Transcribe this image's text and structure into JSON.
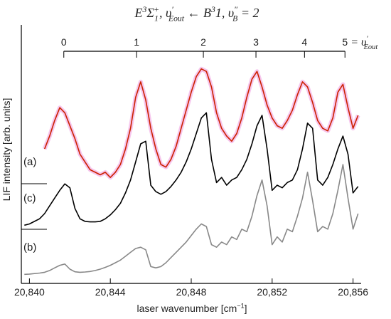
{
  "chart_data": {
    "type": "line",
    "title": [
      "E",
      "3",
      "Σ",
      "1",
      "+",
      ", υ",
      "′",
      "Eout",
      " ← B",
      "3",
      "1, υ",
      "″",
      "B",
      " = 2"
    ],
    "xlabel": [
      "laser wavenumber [cm",
      "−1",
      "]"
    ],
    "ylabel": "LIF intensity [arb. units]",
    "xlim": [
      20839.6,
      20856.4
    ],
    "ylim": [
      0,
      100
    ],
    "xticks": [
      {
        "value": 20840,
        "label": "20,840"
      },
      {
        "value": 20844,
        "label": "20,844"
      },
      {
        "value": 20848,
        "label": "20,848"
      },
      {
        "value": 20852,
        "label": "20,852"
      },
      {
        "value": 20856,
        "label": "20,856"
      }
    ],
    "top_axis": {
      "ticks": [
        {
          "value": 20841.7,
          "label": "0"
        },
        {
          "value": 20845.3,
          "label": "1"
        },
        {
          "value": 20848.6,
          "label": "2"
        },
        {
          "value": 20851.2,
          "label": "3"
        },
        {
          "value": 20853.6,
          "label": "4"
        },
        {
          "value": 20855.6,
          "label": "5"
        }
      ],
      "suffix": [
        "= υ",
        "′",
        "Eout"
      ]
    },
    "x": [
      20839.75,
      20840,
      20840.25,
      20840.5,
      20840.75,
      20841,
      20841.25,
      20841.5,
      20841.75,
      20842,
      20842.25,
      20842.5,
      20842.75,
      20843,
      20843.25,
      20843.5,
      20843.75,
      20844,
      20844.25,
      20844.5,
      20844.75,
      20845,
      20845.25,
      20845.5,
      20845.75,
      20846,
      20846.25,
      20846.5,
      20846.75,
      20847,
      20847.25,
      20847.5,
      20847.75,
      20848,
      20848.25,
      20848.5,
      20848.75,
      20849,
      20849.25,
      20849.5,
      20849.75,
      20850,
      20850.25,
      20850.5,
      20850.75,
      20851,
      20851.25,
      20851.5,
      20851.75,
      20852,
      20852.25,
      20852.5,
      20852.75,
      20853,
      20853.25,
      20853.5,
      20853.75,
      20854,
      20854.25,
      20854.5,
      20854.75,
      20855,
      20855.25,
      20855.5,
      20855.75,
      20856,
      20856.25
    ],
    "series": [
      {
        "name": "(a)",
        "color": "#cc2200",
        "glow": "#f4b8e8",
        "values": [
          null,
          null,
          null,
          null,
          52,
          57,
          63,
          68,
          66,
          61,
          56,
          50,
          47,
          44,
          43,
          42,
          43,
          41,
          43,
          46,
          52,
          60,
          72,
          78,
          71,
          60,
          52,
          46,
          45,
          48,
          53,
          60,
          67,
          74,
          80,
          83,
          82,
          76,
          66,
          60,
          57,
          55,
          58,
          64,
          72,
          79,
          82,
          76,
          69,
          64,
          61,
          60,
          63,
          67,
          73,
          78,
          76,
          70,
          63,
          60,
          59,
          64,
          74,
          77,
          68,
          60,
          65
        ]
      },
      {
        "name": "(c)",
        "color": "#000000",
        "values": [
          22.5,
          23,
          24,
          25,
          27,
          30,
          33,
          36,
          38.5,
          37,
          29,
          25,
          24,
          23.8,
          23.8,
          24,
          25,
          26.5,
          28.5,
          31,
          35,
          40,
          47,
          54,
          55,
          38,
          35.5,
          34.5,
          35.5,
          37.5,
          40,
          43,
          47,
          52,
          58,
          64,
          66,
          48,
          39,
          41,
          38,
          40,
          41,
          44,
          48,
          54,
          61,
          65,
          52,
          36,
          38,
          37,
          39,
          40,
          44,
          52,
          62,
          60,
          40,
          38,
          41,
          46,
          52,
          57,
          50,
          35,
          37.5
        ]
      },
      {
        "name": "(b)",
        "color": "#888888",
        "values": [
          3.5,
          3.6,
          3.8,
          4,
          4.3,
          5,
          6,
          7,
          7.5,
          5.5,
          4.5,
          4.3,
          4.4,
          4.6,
          5,
          5.5,
          6.2,
          7,
          8,
          9,
          10.5,
          12,
          13.5,
          14,
          13,
          6.5,
          6,
          6.5,
          8,
          10,
          12,
          14,
          16,
          18.5,
          21,
          23,
          22,
          15,
          14,
          16,
          15,
          18,
          17,
          21,
          20,
          26,
          34,
          40,
          30,
          15,
          18,
          16,
          21,
          20,
          26,
          33,
          43,
          32,
          20,
          22,
          21,
          27,
          36,
          46,
          33,
          21,
          27
        ]
      }
    ]
  }
}
